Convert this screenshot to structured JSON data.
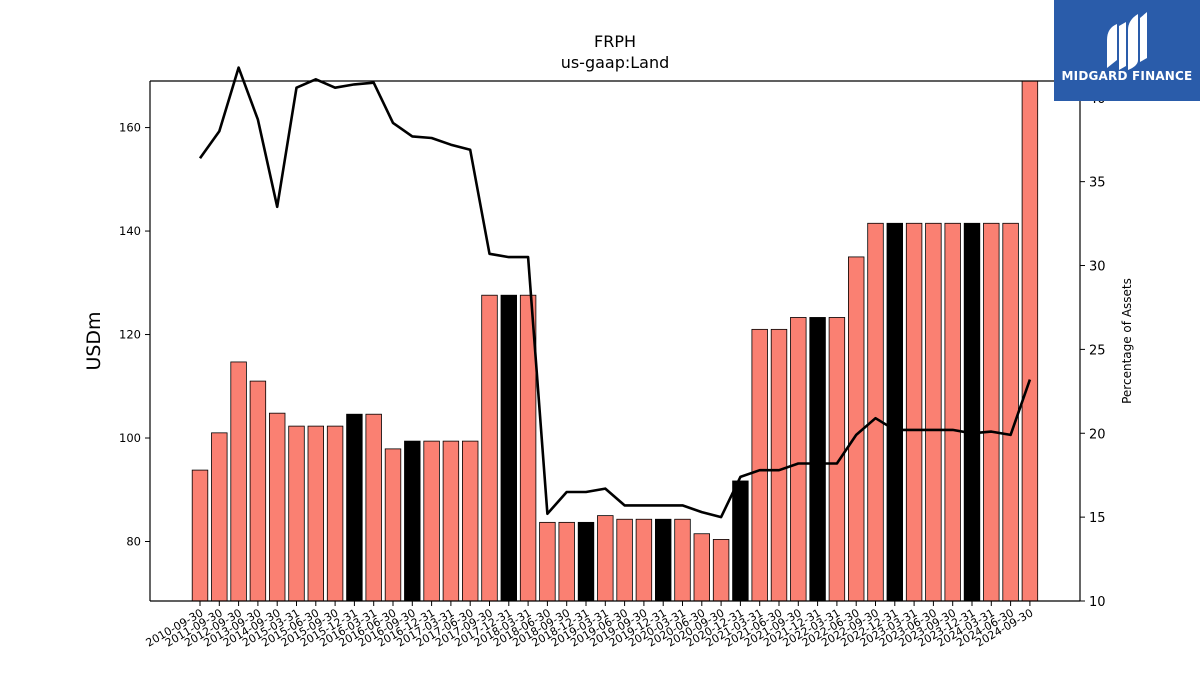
{
  "chart_data": {
    "type": "bar",
    "title": "FRPH",
    "subtitle": "us-gaap:Land",
    "ylabel": "USDm",
    "y2label": "Percentage of Assets",
    "ylim": [
      68.5,
      169
    ],
    "y2lim": [
      10,
      41
    ],
    "yticks": [
      80,
      100,
      120,
      140,
      160
    ],
    "y2ticks": [
      10,
      15,
      20,
      25,
      30,
      35,
      40
    ],
    "categories": [
      "2010-09-30",
      "2011-09-30",
      "2012-09-30",
      "2013-09-30",
      "2014-09-30",
      "2015-03-31",
      "2015-06-30",
      "2015-09-30",
      "2015-12-31",
      "2016-03-31",
      "2016-06-30",
      "2016-09-30",
      "2016-12-31",
      "2017-03-31",
      "2017-06-30",
      "2017-09-30",
      "2017-12-31",
      "2018-03-31",
      "2018-06-30",
      "2018-09-30",
      "2018-12-31",
      "2019-03-31",
      "2019-06-30",
      "2019-09-30",
      "2019-12-31",
      "2020-03-31",
      "2020-06-30",
      "2020-09-30",
      "2020-12-31",
      "2021-03-31",
      "2021-06-30",
      "2021-09-30",
      "2021-12-31",
      "2022-03-31",
      "2022-06-30",
      "2022-09-30",
      "2022-12-31",
      "2023-03-31",
      "2023-06-30",
      "2023-09-30",
      "2023-12-31",
      "2024-03-31",
      "2024-06-30",
      "2024-09-30"
    ],
    "series": [
      {
        "type": "bar",
        "values": [
          93.8,
          101.0,
          114.7,
          111.0,
          104.8,
          102.3,
          102.3,
          102.3,
          104.6,
          104.6,
          97.9,
          99.4,
          99.4,
          99.4,
          99.4,
          127.6,
          127.6,
          127.6,
          83.7,
          83.7,
          83.7,
          85.0,
          84.3,
          84.3,
          84.3,
          84.3,
          81.5,
          80.4,
          91.7,
          121.0,
          121.0,
          123.3,
          123.3,
          123.3,
          135.0,
          141.5,
          141.5,
          141.5,
          141.5,
          141.5,
          141.5,
          141.5,
          141.5,
          169.0
        ],
        "highlight": [
          false,
          false,
          false,
          false,
          false,
          false,
          false,
          false,
          true,
          false,
          false,
          true,
          false,
          false,
          false,
          false,
          true,
          false,
          false,
          false,
          true,
          false,
          false,
          false,
          true,
          false,
          false,
          false,
          true,
          false,
          false,
          false,
          true,
          false,
          false,
          false,
          true,
          false,
          false,
          false,
          true,
          false,
          false,
          false
        ]
      },
      {
        "type": "line",
        "axis": "right",
        "values": [
          36.4,
          38.0,
          41.8,
          38.7,
          33.5,
          40.6,
          41.1,
          40.6,
          40.8,
          40.9,
          38.5,
          37.7,
          37.6,
          37.2,
          36.9,
          30.7,
          30.5,
          30.5,
          15.2,
          16.5,
          16.5,
          16.7,
          15.7,
          15.7,
          15.7,
          15.7,
          15.3,
          15.0,
          17.4,
          17.8,
          17.8,
          18.2,
          18.2,
          18.2,
          19.9,
          20.9,
          20.2,
          20.2,
          20.2,
          20.2,
          20.0,
          20.1,
          19.9,
          23.2
        ]
      }
    ],
    "colors": {
      "bar": "#fa8072",
      "bar_highlight": "#000000",
      "line": "#000000"
    },
    "grid": false,
    "legend": "none"
  },
  "logo": {
    "text": "MIDGARD FINANCE",
    "color": "#2a5caa"
  }
}
